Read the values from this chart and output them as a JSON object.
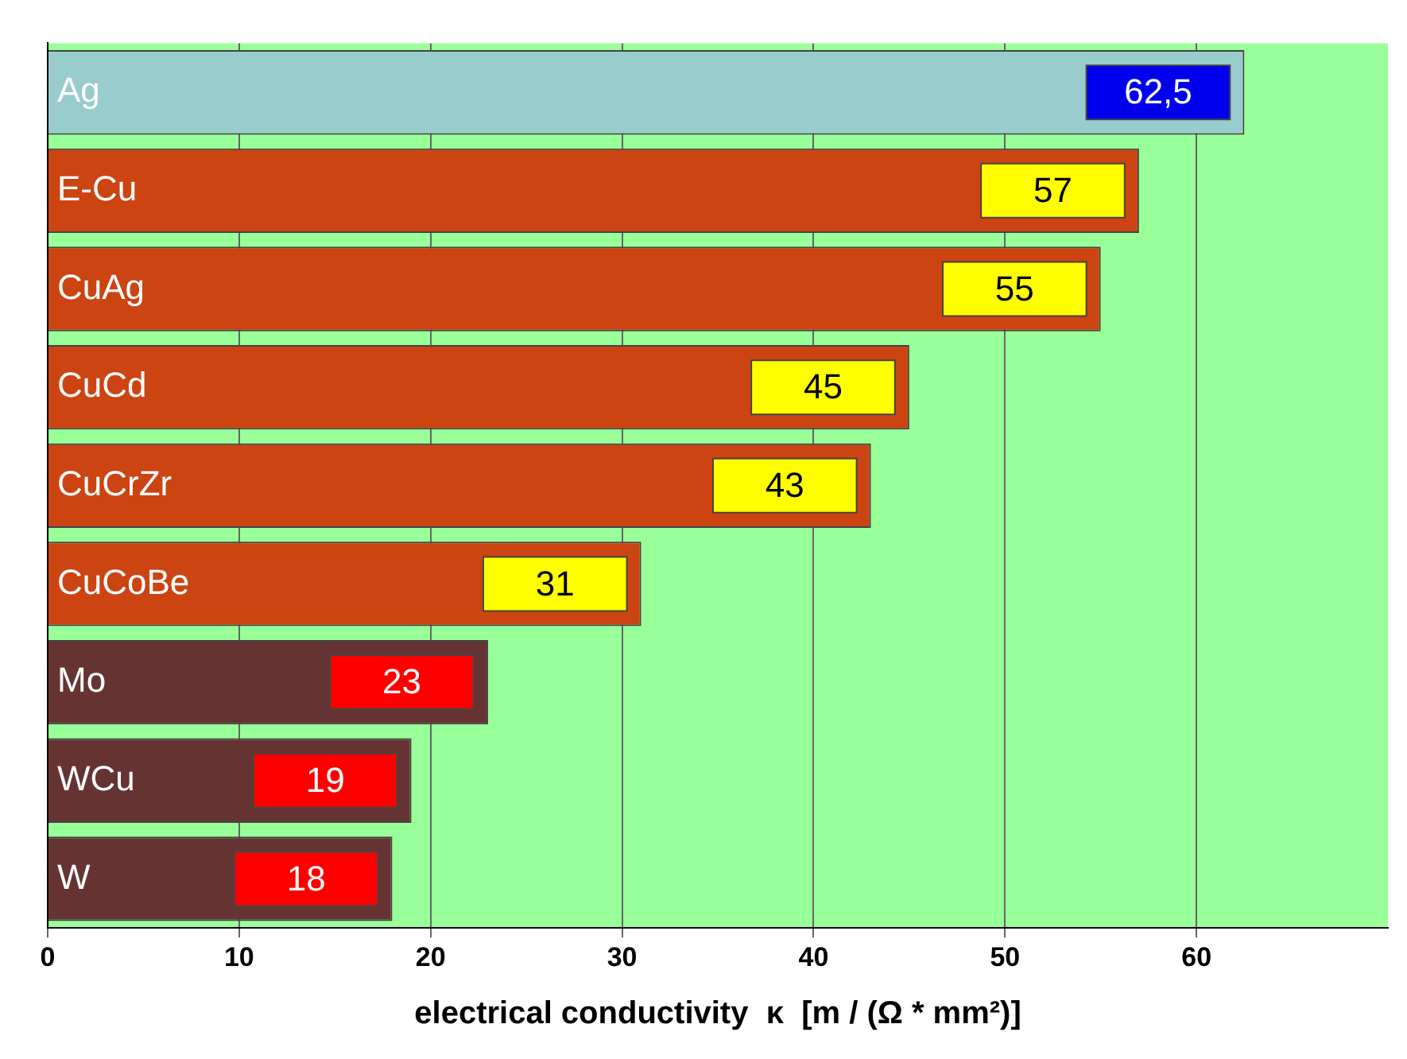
{
  "chart_data": {
    "type": "bar",
    "orientation": "horizontal",
    "xlabel": "electrical conductivity  κ  [m / (Ω * mm²)]",
    "categories": [
      "Ag",
      "E-Cu",
      "CuAg",
      "CuCd",
      "CuCrZr",
      "CuCoBe",
      "Mo",
      "WCu",
      "W"
    ],
    "values": [
      62.5,
      57,
      55,
      45,
      43,
      31,
      23,
      19,
      18
    ],
    "value_labels": [
      "62,5",
      "57",
      "55",
      "45",
      "43",
      "31",
      "23",
      "19",
      "18"
    ],
    "colors": [
      "#99cccc",
      "#cc4411",
      "#cc4411",
      "#cc4411",
      "#cc4411",
      "#cc4411",
      "#663333",
      "#663333",
      "#663333"
    ],
    "xlim": [
      0,
      70
    ],
    "xticks": [
      0,
      10,
      20,
      30,
      40,
      50,
      60
    ],
    "grid": "x"
  }
}
